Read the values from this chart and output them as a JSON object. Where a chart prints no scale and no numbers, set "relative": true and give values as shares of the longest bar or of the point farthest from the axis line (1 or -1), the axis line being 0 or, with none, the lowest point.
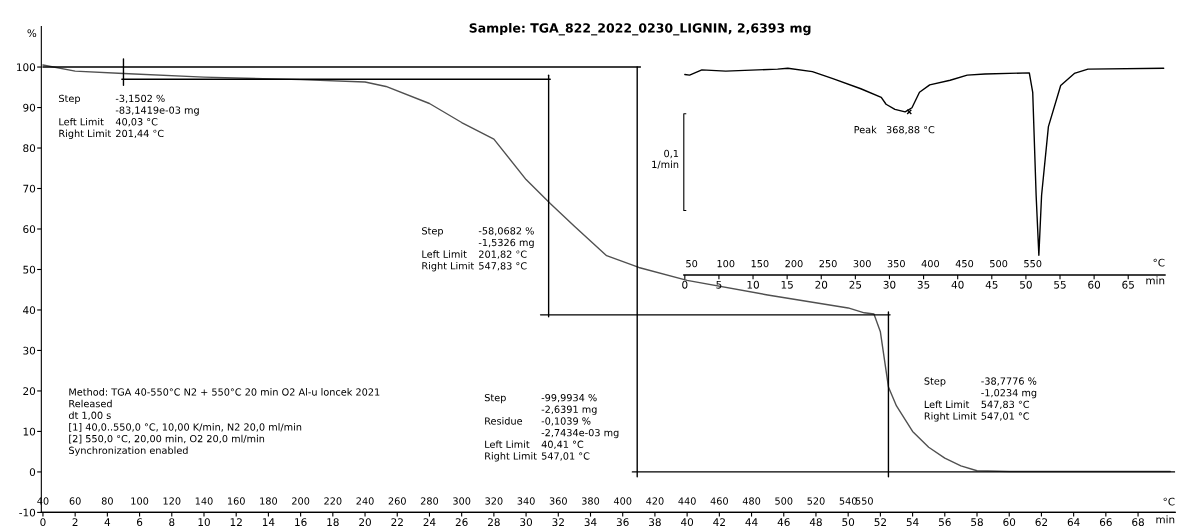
{
  "chart_data": [
    {
      "type": "line",
      "title": "Sample: TGA_822_2022_0230_LIGNIN, 2,6393 mg",
      "xlabel": "min",
      "x2label": "°C",
      "ylabel": "%",
      "xlim": [
        -0.1,
        70.3
      ],
      "x2lim": [
        39,
        743
      ],
      "xticks": [
        0,
        2,
        4,
        6,
        8,
        10,
        12,
        14,
        16,
        18,
        20,
        22,
        24,
        26,
        28,
        30,
        32,
        34,
        36,
        38,
        40,
        42,
        44,
        46,
        48,
        50,
        52,
        54,
        56,
        58,
        60,
        62,
        64,
        66,
        68
      ],
      "x2ticks": [
        40,
        60,
        80,
        100,
        120,
        140,
        160,
        180,
        200,
        220,
        240,
        260,
        280,
        300,
        320,
        340,
        360,
        380,
        400,
        420,
        440,
        460,
        480,
        500,
        520,
        540,
        550
      ],
      "ylim": [
        -10,
        110
      ],
      "yticks": [
        -10,
        0,
        10,
        20,
        30,
        40,
        50,
        60,
        70,
        80,
        90,
        100
      ],
      "series": [
        {
          "color": "#505050",
          "x": [
            0,
            2,
            5,
            10,
            16,
            20,
            21.3,
            24,
            26,
            28,
            30,
            31.5,
            33,
            35,
            37,
            40,
            45,
            50,
            51,
            51.6,
            52,
            52.5,
            53,
            54,
            55,
            56,
            57,
            58,
            60,
            70
          ],
          "values": [
            100.5,
            99.0,
            98.4,
            97.5,
            96.9,
            96.3,
            95.2,
            91.0,
            86.3,
            82.2,
            72.2,
            66.3,
            60.7,
            53.4,
            50.5,
            47.3,
            43.7,
            40.5,
            39.3,
            39.0,
            34.6,
            21.0,
            16.3,
            10.0,
            6.1,
            3.4,
            1.5,
            0.3,
            0.1,
            0.1
          ]
        },
        {
          "color": "#000000",
          "x": [
            0,
            37.1
          ],
          "values": [
            100,
            100
          ]
        },
        {
          "color": "#000000",
          "x": [
            4.9,
            31.5
          ],
          "values": [
            97,
            97
          ]
        },
        {
          "color": "#000000",
          "x": [
            30.9,
            52.6
          ],
          "values": [
            38.8,
            38.8
          ]
        },
        {
          "color": "#000000",
          "x": [
            36.6,
            70.3
          ],
          "values": [
            0,
            0
          ]
        },
        {
          "color": "#000000",
          "x": [
            5.0,
            5.0
          ],
          "values": [
            102,
            95.5
          ]
        },
        {
          "color": "#000000",
          "x": [
            31.4,
            31.4
          ],
          "values": [
            98,
            38.3
          ]
        },
        {
          "color": "#000000",
          "x": [
            36.9,
            36.9
          ],
          "values": [
            100,
            -1.2
          ]
        },
        {
          "color": "#000000",
          "x": [
            52.5,
            52.5
          ],
          "values": [
            39.5,
            -1.2
          ]
        }
      ],
      "annotations": [
        "Step\t-3,1502 %\n\t-83,1419e-03 mg\nLeft Limit\t40,03 °C\nRight Limit\t201,44 °C",
        "Step\t-58,0682 %\n\t-1,5326 mg\nLeft Limit\t201,82 °C\nRight Limit\t547,83 °C",
        "Step\t-99,9934 %\n\t-2,6391 mg\nResidue\t-0,1039 %\n\t-2,7434e-03 mg\nLeft Limit\t40,41 °C\nRight Limit\t547,01 °C",
        "Step\t-38,7776 %\n\t-1,0234 mg\nLeft Limit\t547,83 °C\nRight Limit\t547,01 °C",
        "Method: TGA 40-550°C N2 + 550°C 20 min O2 Al-u loncek 2021\nReleased\ndt 1,00 s\n[1] 40,0..550,0 °C, 10,00 K/min, N2 20,0 ml/min\n[2] 550,0 °C, 20,00 min, O2 20,0 ml/min\nSynchronization enabled"
      ]
    },
    {
      "type": "line",
      "relative": true,
      "xlabel": "min",
      "x2label": "°C",
      "xlim": [
        -0.15,
        70.4
      ],
      "x2lim": [
        38.5,
        744
      ],
      "xticks": [
        0,
        5,
        10,
        15,
        20,
        25,
        30,
        35,
        40,
        45,
        50,
        55,
        60,
        65
      ],
      "x2ticks": [
        50,
        100,
        150,
        200,
        250,
        300,
        350,
        400,
        450,
        500,
        550
      ],
      "series": [
        {
          "color": "#000000",
          "x": [
            0,
            0.7,
            2.5,
            6.0,
            13.6,
            15.1,
            18.7,
            21.7,
            25.8,
            28.8,
            29.5,
            30.8,
            32.3,
            33.3,
            34.4,
            35.9,
            38.9,
            41.4,
            44.0,
            50.5,
            51.0,
            51.5,
            51.9,
            52.3,
            53.3,
            55.1,
            57.1,
            59.1,
            70.2
          ],
          "values": [
            0.97,
            0.967,
            0.992,
            0.986,
            0.996,
            1.0,
            0.984,
            0.95,
            0.901,
            0.859,
            0.826,
            0.801,
            0.789,
            0.809,
            0.884,
            0.92,
            0.942,
            0.967,
            0.972,
            0.978,
            0.884,
            0.386,
            0.096,
            0.386,
            0.718,
            0.917,
            0.975,
            0.996,
            1.0
          ]
        }
      ],
      "annotations": [
        {
          "text": "Peak   368,88 °C",
          "x": 32.9,
          "y": 0.789
        },
        "0,1\n1/min"
      ]
    }
  ]
}
